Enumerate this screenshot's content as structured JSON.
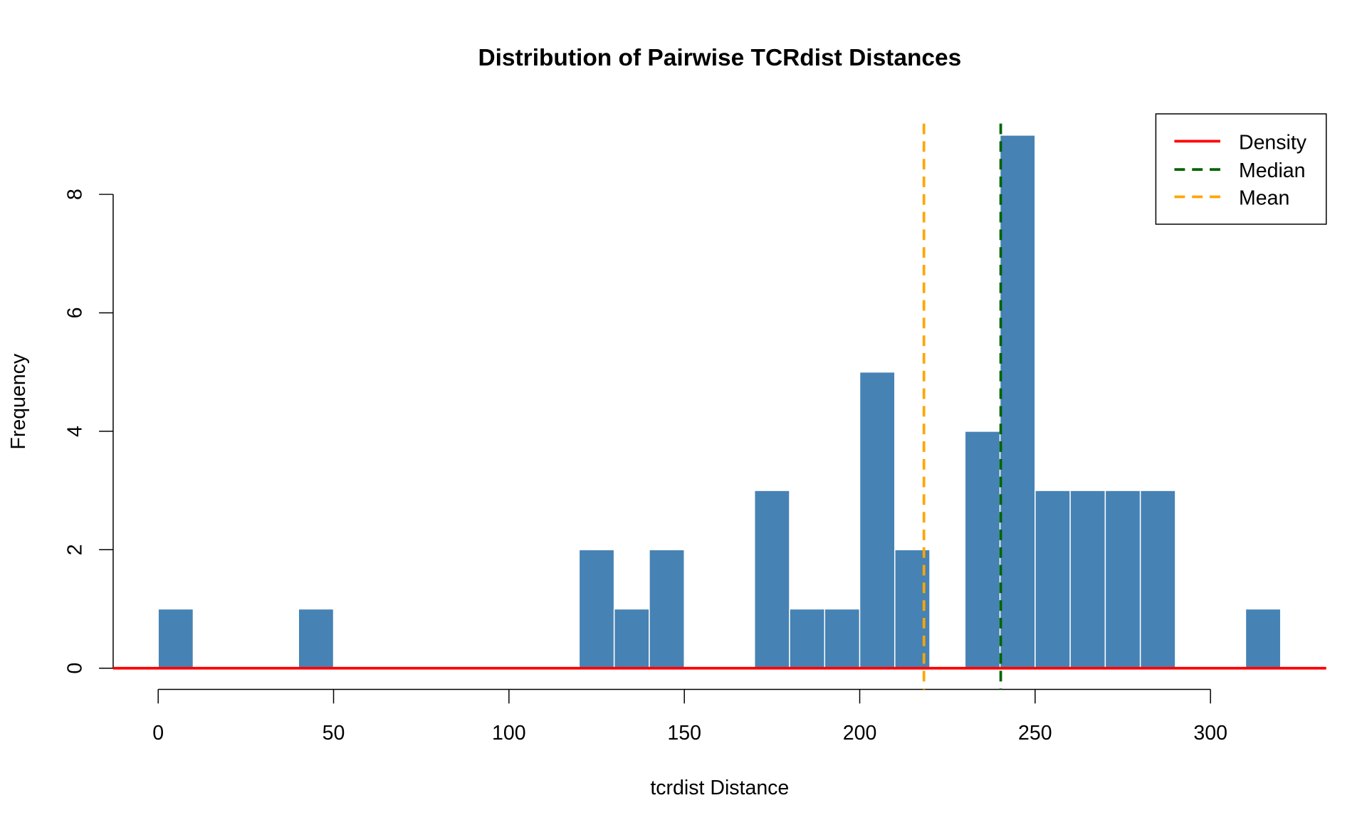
{
  "chart_data": {
    "type": "bar",
    "title": "Distribution of Pairwise TCRdist Distances",
    "xlabel": "tcrdist Distance",
    "ylabel": "Frequency",
    "xlim": [
      -13,
      333
    ],
    "ylim": [
      -0.35,
      9.45
    ],
    "xticks": [
      0,
      50,
      100,
      150,
      200,
      250,
      300
    ],
    "yticks": [
      0,
      2,
      4,
      6,
      8
    ],
    "grid": false,
    "bins": [
      {
        "from": 0,
        "to": 10,
        "count": 1
      },
      {
        "from": 40,
        "to": 50,
        "count": 1
      },
      {
        "from": 120,
        "to": 130,
        "count": 2
      },
      {
        "from": 130,
        "to": 140,
        "count": 1
      },
      {
        "from": 140,
        "to": 150,
        "count": 2
      },
      {
        "from": 170,
        "to": 180,
        "count": 3
      },
      {
        "from": 180,
        "to": 190,
        "count": 1
      },
      {
        "from": 190,
        "to": 200,
        "count": 1
      },
      {
        "from": 200,
        "to": 210,
        "count": 5
      },
      {
        "from": 210,
        "to": 220,
        "count": 2
      },
      {
        "from": 230,
        "to": 240,
        "count": 4
      },
      {
        "from": 240,
        "to": 250,
        "count": 9
      },
      {
        "from": 250,
        "to": 260,
        "count": 3
      },
      {
        "from": 260,
        "to": 270,
        "count": 3
      },
      {
        "from": 270,
        "to": 280,
        "count": 3
      },
      {
        "from": 280,
        "to": 290,
        "count": 3
      },
      {
        "from": 310,
        "to": 320,
        "count": 1
      }
    ],
    "median": 240.2,
    "mean": 218.3,
    "legend": {
      "position": "top-right",
      "entries": [
        {
          "label": "Density",
          "color": "#ff0000",
          "style": "solid"
        },
        {
          "label": "Median",
          "color": "#006400",
          "style": "dashed"
        },
        {
          "label": "Mean",
          "color": "#ffa500",
          "style": "dashed"
        }
      ]
    },
    "colors": {
      "bar": "#4682b4",
      "bar_border": "#ffffff",
      "density": "#ff0000",
      "median": "#006400",
      "mean": "#ffa500"
    }
  }
}
